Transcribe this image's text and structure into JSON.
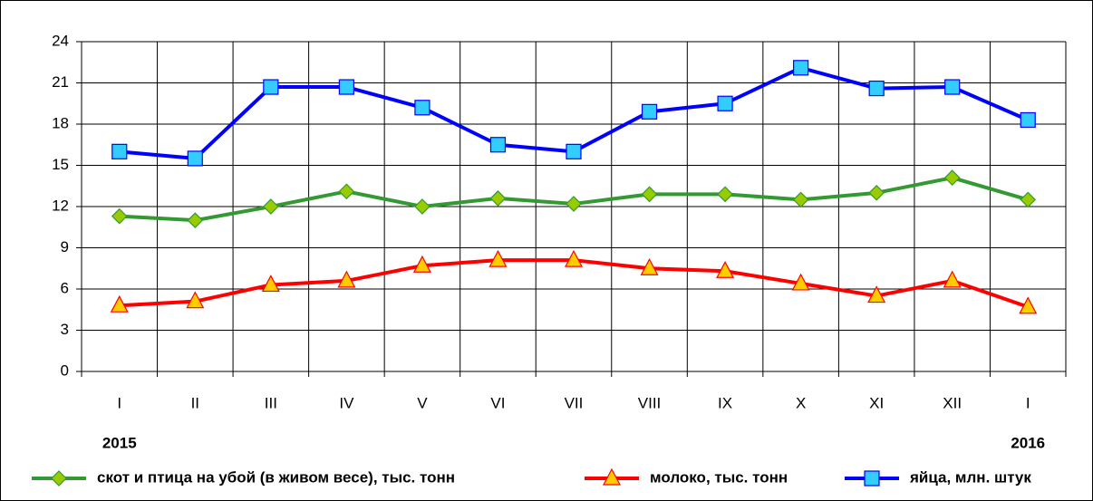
{
  "chart_data": {
    "type": "line",
    "categories": [
      "I",
      "II",
      "III",
      "IV",
      "V",
      "VI",
      "VII",
      "VIII",
      "IX",
      "X",
      "XI",
      "XII",
      "I"
    ],
    "annotations": [
      "2015",
      "2016"
    ],
    "series": [
      {
        "name": "скот и птица на убой (в живом весе), тыс. тонн",
        "color": "#339933",
        "marker": "diamond",
        "marker_color": "#99cc00",
        "values": [
          11.3,
          11.0,
          12.0,
          13.1,
          12.0,
          12.6,
          12.2,
          12.9,
          12.9,
          12.5,
          13.0,
          14.1,
          12.5
        ]
      },
      {
        "name": "молоко, тыс. тонн",
        "color": "#ff0000",
        "marker": "triangle",
        "marker_color": "#ffcc00",
        "values": [
          4.8,
          5.1,
          6.3,
          6.6,
          7.7,
          8.1,
          8.1,
          7.5,
          7.3,
          6.4,
          5.5,
          6.6,
          4.7
        ]
      },
      {
        "name": "яйца, млн. штук",
        "color": "#0000ff",
        "marker": "square",
        "marker_color": "#33ccff",
        "values": [
          16.0,
          15.5,
          20.7,
          20.7,
          19.2,
          16.5,
          16.0,
          18.9,
          19.5,
          22.1,
          20.6,
          20.7,
          18.3
        ]
      }
    ],
    "ylim": [
      0,
      24
    ],
    "yticks": [
      0,
      3,
      6,
      9,
      12,
      15,
      18,
      21,
      24
    ],
    "grid": true,
    "legend": "bottom"
  }
}
